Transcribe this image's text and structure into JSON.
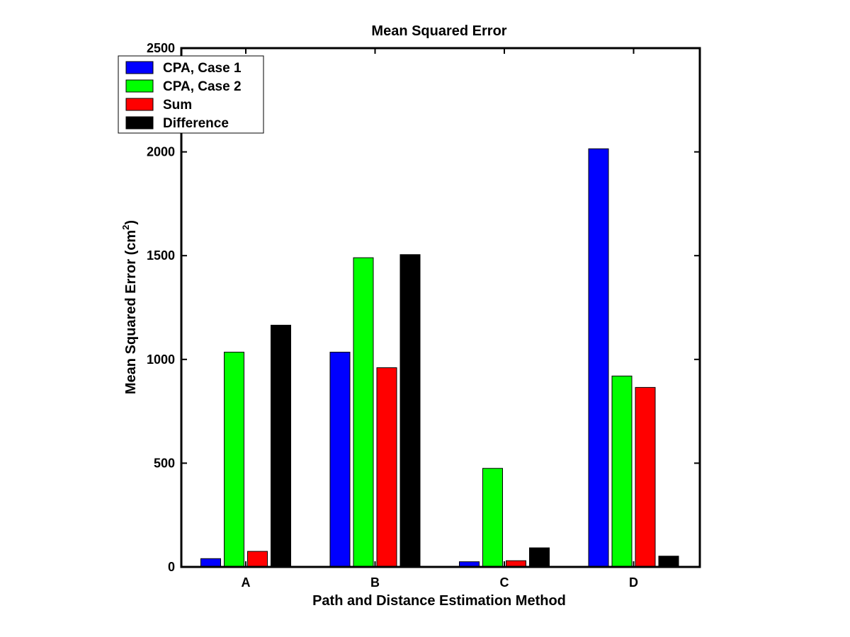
{
  "chart_data": {
    "type": "bar",
    "title": "Mean Squared Error",
    "xlabel": "Path and Distance Estimation Method",
    "ylabel_main": "Mean Squared Error (cm",
    "ylabel_sup": "2",
    "ylabel_close": ")",
    "categories": [
      "A",
      "B",
      "C",
      "D"
    ],
    "ylim": [
      0,
      2500
    ],
    "yticks": [
      0,
      500,
      1000,
      1500,
      2000,
      2500
    ],
    "grid": false,
    "legend_position": "top-left",
    "series": [
      {
        "name": "CPA, Case 1",
        "color": "#0000ff",
        "values": [
          40,
          1035,
          25,
          2015
        ]
      },
      {
        "name": "CPA, Case 2",
        "color": "#00ff00",
        "values": [
          1035,
          1490,
          475,
          920
        ]
      },
      {
        "name": "Sum",
        "color": "#ff0000",
        "values": [
          75,
          960,
          30,
          865
        ]
      },
      {
        "name": "Difference",
        "color": "#000000",
        "values": [
          1165,
          1505,
          92,
          52
        ]
      }
    ]
  }
}
